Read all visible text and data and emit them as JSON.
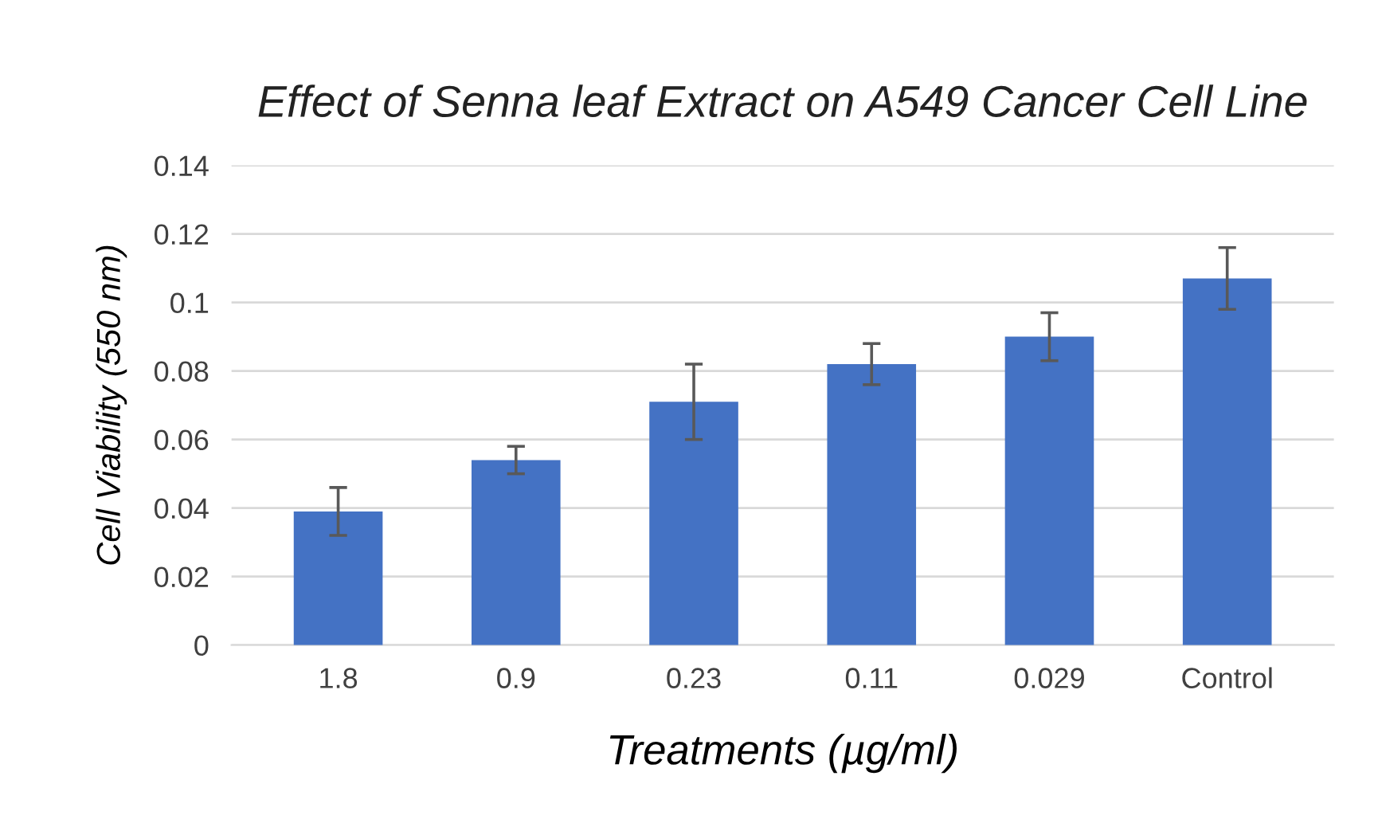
{
  "chart_data": {
    "type": "bar",
    "title": "Effect of Senna leaf Extract on A549 Cancer Cell Line",
    "xlabel": "Treatments (µg/ml)",
    "ylabel": "Cell Viability (550 nm)",
    "categories": [
      "1.8",
      "0.9",
      "0.23",
      "0.11",
      "0.029",
      "Control"
    ],
    "values": [
      0.039,
      0.054,
      0.071,
      0.082,
      0.09,
      0.107
    ],
    "errors": [
      0.007,
      0.004,
      0.011,
      0.006,
      0.007,
      0.009
    ],
    "color": "#4472c4",
    "ylim": [
      0,
      0.14
    ],
    "yticks": [
      {
        "value": 0,
        "label": "0"
      },
      {
        "value": 0.02,
        "label": "0.02"
      },
      {
        "value": 0.04,
        "label": "0.04"
      },
      {
        "value": 0.06,
        "label": "0.06"
      },
      {
        "value": 0.08,
        "label": "0.08"
      },
      {
        "value": 0.1,
        "label": "0.1"
      },
      {
        "value": 0.12,
        "label": "0.12"
      },
      {
        "value": 0.14,
        "label": "0.14"
      }
    ],
    "grid": "y"
  }
}
